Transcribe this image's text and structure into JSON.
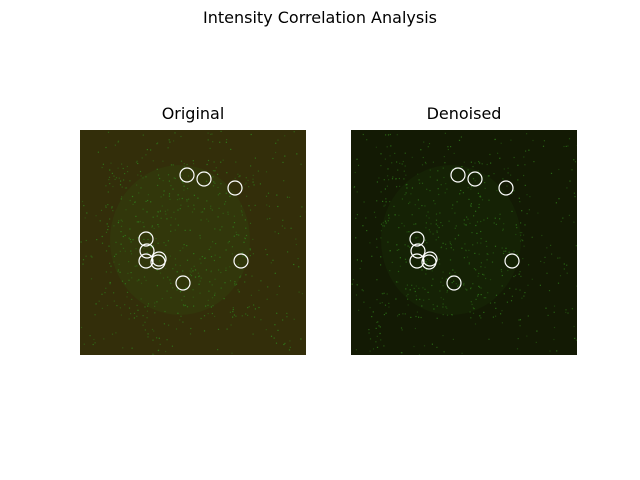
{
  "figure": {
    "title": "Intensity Correlation Analysis"
  },
  "panels": [
    {
      "title": "Original",
      "background_color": "#332e0a",
      "speckle_color": "#2f7a1a"
    },
    {
      "title": "Denoised",
      "background_color": "#131a04",
      "speckle_color": "#2b6e16"
    }
  ],
  "markers": {
    "style": "hollow white circles",
    "color": "#ffffff",
    "count": 10
  }
}
